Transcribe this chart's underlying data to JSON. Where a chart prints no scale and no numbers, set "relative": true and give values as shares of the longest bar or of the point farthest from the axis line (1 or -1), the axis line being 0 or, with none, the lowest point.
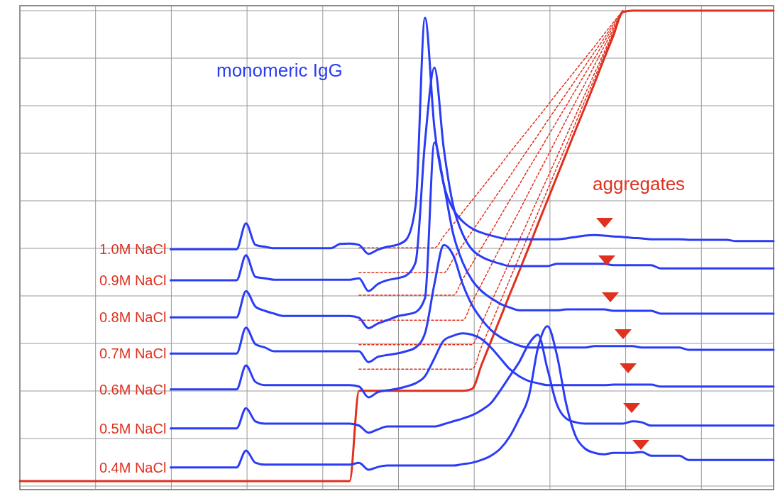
{
  "chart_data": {
    "type": "line",
    "relative": true,
    "grid": true,
    "categories": [
      null,
      null,
      null,
      null,
      null,
      null,
      null,
      null,
      null,
      null,
      null,
      null,
      null,
      null,
      null,
      null,
      null,
      null,
      null,
      null,
      null,
      null,
      null,
      null,
      null,
      null,
      null,
      null,
      null,
      null,
      null,
      null,
      null,
      null,
      null,
      null,
      null,
      null,
      null,
      null,
      null,
      null,
      null,
      null,
      null,
      null,
      null,
      null,
      null,
      null,
      null,
      null,
      null,
      null,
      null,
      null,
      null,
      null,
      null,
      null,
      null,
      null,
      null,
      null,
      null,
      null,
      null,
      null,
      null,
      null,
      null,
      null,
      null,
      null,
      null,
      null,
      null,
      null,
      null,
      null,
      null
    ],
    "annotations": [
      "monomeric IgG",
      "aggregates"
    ],
    "series": [
      {
        "color": "#e0301e",
        "line_style": "dotted",
        "values": [
          null,
          null,
          null,
          null,
          null,
          null,
          null,
          null,
          null,
          null,
          null,
          null,
          null,
          null,
          null,
          null,
          null,
          null,
          null,
          null,
          null,
          null,
          null,
          null,
          null,
          null,
          null,
          null,
          null,
          null,
          null,
          null,
          null,
          null,
          null,
          null,
          0.496,
          0.496,
          0.496,
          0.496,
          0.496,
          0.496,
          0.496,
          0.496,
          0.496,
          0.521,
          0.546,
          0.572,
          0.597,
          0.622,
          0.647,
          0.672,
          0.698,
          0.723,
          0.748,
          0.773,
          0.798,
          0.824,
          0.849,
          0.874,
          0.899,
          0.924,
          0.95,
          0.975,
          1,
          null,
          null,
          null,
          null,
          null,
          null,
          null,
          null,
          null,
          null,
          null,
          null,
          null,
          null,
          null,
          null
        ]
      },
      {
        "color": "#e0301e",
        "line_style": "dotted",
        "values": [
          null,
          null,
          null,
          null,
          null,
          null,
          null,
          null,
          null,
          null,
          null,
          null,
          null,
          null,
          null,
          null,
          null,
          null,
          null,
          null,
          null,
          null,
          null,
          null,
          null,
          null,
          null,
          null,
          null,
          null,
          null,
          null,
          null,
          null,
          null,
          null,
          0.443,
          0.443,
          0.443,
          0.443,
          0.443,
          0.443,
          0.443,
          0.443,
          0.443,
          0.443,
          0.472,
          0.502,
          0.531,
          0.56,
          0.59,
          0.619,
          0.648,
          0.678,
          0.707,
          0.736,
          0.766,
          0.795,
          0.824,
          0.853,
          0.883,
          0.912,
          0.941,
          0.971,
          1,
          null,
          null,
          null,
          null,
          null,
          null,
          null,
          null,
          null,
          null,
          null,
          null,
          null,
          null,
          null,
          null
        ]
      },
      {
        "color": "#e0301e",
        "line_style": "dotted",
        "values": [
          null,
          null,
          null,
          null,
          null,
          null,
          null,
          null,
          null,
          null,
          null,
          null,
          null,
          null,
          null,
          null,
          null,
          null,
          null,
          null,
          null,
          null,
          null,
          null,
          null,
          null,
          null,
          null,
          null,
          null,
          null,
          null,
          null,
          null,
          null,
          null,
          0.395,
          0.395,
          0.395,
          0.395,
          0.395,
          0.395,
          0.395,
          0.395,
          0.395,
          0.395,
          0.395,
          0.429,
          0.462,
          0.496,
          0.529,
          0.563,
          0.597,
          0.63,
          0.664,
          0.697,
          0.731,
          0.765,
          0.798,
          0.832,
          0.866,
          0.899,
          0.933,
          0.966,
          1,
          null,
          null,
          null,
          null,
          null,
          null,
          null,
          null,
          null,
          null,
          null,
          null,
          null,
          null,
          null,
          null
        ]
      },
      {
        "color": "#e0301e",
        "line_style": "dotted",
        "values": [
          null,
          null,
          null,
          null,
          null,
          null,
          null,
          null,
          null,
          null,
          null,
          null,
          null,
          null,
          null,
          null,
          null,
          null,
          null,
          null,
          null,
          null,
          null,
          null,
          null,
          null,
          null,
          null,
          null,
          null,
          null,
          null,
          null,
          null,
          null,
          null,
          0.342,
          0.342,
          0.342,
          0.342,
          0.342,
          0.342,
          0.342,
          0.342,
          0.342,
          0.342,
          0.342,
          0.342,
          0.381,
          0.419,
          0.458,
          0.497,
          0.536,
          0.574,
          0.613,
          0.652,
          0.69,
          0.729,
          0.768,
          0.807,
          0.845,
          0.884,
          0.923,
          0.961,
          1,
          null,
          null,
          null,
          null,
          null,
          null,
          null,
          null,
          null,
          null,
          null,
          null,
          null,
          null,
          null,
          null
        ]
      },
      {
        "color": "#e0301e",
        "line_style": "dotted",
        "values": [
          null,
          null,
          null,
          null,
          null,
          null,
          null,
          null,
          null,
          null,
          null,
          null,
          null,
          null,
          null,
          null,
          null,
          null,
          null,
          null,
          null,
          null,
          null,
          null,
          null,
          null,
          null,
          null,
          null,
          null,
          null,
          null,
          null,
          null,
          null,
          null,
          0.29,
          0.29,
          0.29,
          0.29,
          0.29,
          0.29,
          0.29,
          0.29,
          0.29,
          0.29,
          0.29,
          0.29,
          0.29,
          0.334,
          0.379,
          0.423,
          0.468,
          0.512,
          0.556,
          0.601,
          0.645,
          0.689,
          0.734,
          0.778,
          0.823,
          0.867,
          0.911,
          0.956,
          1,
          null,
          null,
          null,
          null,
          null,
          null,
          null,
          null,
          null,
          null,
          null,
          null,
          null,
          null,
          null,
          null
        ]
      },
      {
        "color": "#e0301e",
        "line_style": "dotted",
        "values": [
          null,
          null,
          null,
          null,
          null,
          null,
          null,
          null,
          null,
          null,
          null,
          null,
          null,
          null,
          null,
          null,
          null,
          null,
          null,
          null,
          null,
          null,
          null,
          null,
          null,
          null,
          null,
          null,
          null,
          null,
          null,
          null,
          null,
          null,
          null,
          null,
          0.238,
          0.238,
          0.238,
          0.238,
          0.238,
          0.238,
          0.238,
          0.238,
          0.238,
          0.238,
          0.238,
          0.238,
          0.238,
          0.286,
          0.333,
          0.381,
          0.429,
          0.476,
          0.524,
          0.571,
          0.619,
          0.667,
          0.714,
          0.762,
          0.81,
          0.857,
          0.905,
          0.952,
          1,
          null,
          null,
          null,
          null,
          null,
          null,
          null,
          null,
          null,
          null,
          null,
          null,
          null,
          null,
          null,
          null
        ]
      },
      {
        "color": "#e0301e",
        "values": [
          0,
          0,
          0,
          0,
          0,
          0,
          0,
          0,
          0,
          0,
          0,
          0,
          0,
          0,
          0,
          0,
          0,
          0,
          0,
          0,
          0,
          0,
          0,
          0,
          0,
          0,
          0,
          0,
          0,
          0,
          0,
          0,
          0,
          0,
          0,
          0,
          0.192,
          0.192,
          0.192,
          0.192,
          0.192,
          0.192,
          0.192,
          0.192,
          0.192,
          0.192,
          0.192,
          0.192,
          0.196,
          0.247,
          0.297,
          0.347,
          0.397,
          0.446,
          0.496,
          0.547,
          0.597,
          0.647,
          0.697,
          0.747,
          0.796,
          0.846,
          0.897,
          0.947,
          0.997,
          1,
          1,
          1,
          1,
          1,
          1,
          1,
          1,
          1,
          1,
          1,
          1,
          1,
          1,
          1,
          1
        ]
      },
      {
        "name": "1.0M NaCl",
        "color": "#2a3cf5",
        "values": [
          null,
          null,
          null,
          null,
          null,
          null,
          null,
          null,
          null,
          null,
          null,
          null,
          null,
          null,
          null,
          null,
          0.493,
          0.493,
          0.493,
          0.493,
          0.493,
          0.493,
          0.493,
          0.493,
          0.548,
          0.502,
          0.498,
          0.495,
          0.495,
          0.495,
          0.495,
          0.495,
          0.495,
          0.495,
          0.504,
          0.505,
          0.502,
          0.483,
          0.492,
          0.498,
          0.502,
          0.513,
          0.585,
          0.985,
          0.751,
          0.63,
          0.578,
          0.552,
          0.537,
          0.528,
          0.522,
          0.517,
          0.514,
          0.514,
          0.514,
          0.514,
          0.514,
          0.514,
          0.516,
          0.519,
          0.522,
          0.523,
          0.522,
          0.52,
          0.519,
          0.517,
          0.516,
          0.514,
          0.514,
          0.514,
          0.514,
          0.513,
          0.513,
          0.513,
          0.513,
          0.513,
          0.51,
          0.51,
          0.51,
          0.51,
          0.51
        ]
      },
      {
        "name": "0.9M NaCl",
        "color": "#2a3cf5",
        "values": [
          null,
          null,
          null,
          null,
          null,
          null,
          null,
          null,
          null,
          null,
          null,
          null,
          null,
          null,
          null,
          null,
          0.427,
          0.427,
          0.427,
          0.427,
          0.427,
          0.427,
          0.427,
          0.427,
          0.48,
          0.434,
          0.431,
          0.428,
          0.428,
          0.428,
          0.428,
          0.428,
          0.428,
          0.428,
          0.428,
          0.428,
          0.431,
          0.404,
          0.419,
          0.427,
          0.431,
          0.437,
          0.465,
          0.721,
          0.879,
          0.706,
          0.585,
          0.525,
          0.492,
          0.477,
          0.468,
          0.462,
          0.457,
          0.457,
          0.457,
          0.457,
          0.457,
          0.462,
          0.462,
          0.462,
          0.462,
          0.462,
          0.462,
          0.459,
          0.459,
          0.459,
          0.459,
          0.459,
          0.452,
          0.452,
          0.452,
          0.452,
          0.452,
          0.452,
          0.452,
          0.452,
          0.452,
          0.452,
          0.452,
          0.452,
          0.452
        ]
      },
      {
        "name": "0.8M NaCl",
        "color": "#2a3cf5",
        "values": [
          null,
          null,
          null,
          null,
          null,
          null,
          null,
          null,
          null,
          null,
          null,
          null,
          null,
          null,
          null,
          null,
          0.348,
          0.348,
          0.348,
          0.348,
          0.348,
          0.348,
          0.348,
          0.348,
          0.404,
          0.371,
          0.362,
          0.356,
          0.351,
          0.351,
          0.351,
          0.351,
          0.351,
          0.351,
          0.351,
          0.351,
          0.347,
          0.325,
          0.335,
          0.342,
          0.35,
          0.354,
          0.359,
          0.389,
          0.72,
          0.63,
          0.525,
          0.465,
          0.427,
          0.404,
          0.389,
          0.377,
          0.369,
          0.363,
          0.363,
          0.363,
          0.363,
          0.363,
          0.365,
          0.365,
          0.365,
          0.365,
          0.365,
          0.362,
          0.362,
          0.362,
          0.362,
          0.362,
          0.356,
          0.356,
          0.356,
          0.356,
          0.356,
          0.356,
          0.356,
          0.356,
          0.356,
          0.356,
          0.356,
          0.356,
          0.356
        ]
      },
      {
        "name": "0.7M NaCl",
        "color": "#2a3cf5",
        "values": [
          null,
          null,
          null,
          null,
          null,
          null,
          null,
          null,
          null,
          null,
          null,
          null,
          null,
          null,
          null,
          null,
          0.271,
          0.271,
          0.271,
          0.271,
          0.271,
          0.271,
          0.271,
          0.271,
          0.326,
          0.291,
          0.284,
          0.276,
          0.276,
          0.276,
          0.276,
          0.276,
          0.276,
          0.276,
          0.276,
          0.276,
          0.276,
          0.253,
          0.264,
          0.268,
          0.271,
          0.276,
          0.284,
          0.314,
          0.419,
          0.502,
          0.48,
          0.419,
          0.374,
          0.344,
          0.321,
          0.306,
          0.296,
          0.288,
          0.284,
          0.284,
          0.284,
          0.284,
          0.284,
          0.284,
          0.284,
          0.287,
          0.287,
          0.287,
          0.287,
          0.287,
          0.284,
          0.284,
          0.284,
          0.284,
          0.284,
          0.279,
          0.279,
          0.279,
          0.279,
          0.279,
          0.279,
          0.279,
          0.279,
          0.279,
          0.279
        ]
      },
      {
        "name": "0.6M NaCl",
        "color": "#2a3cf5",
        "values": [
          null,
          null,
          null,
          null,
          null,
          null,
          null,
          null,
          null,
          null,
          null,
          null,
          null,
          null,
          null,
          null,
          0.195,
          0.195,
          0.195,
          0.195,
          0.195,
          0.195,
          0.195,
          0.195,
          0.246,
          0.211,
          0.204,
          0.204,
          0.204,
          0.204,
          0.204,
          0.204,
          0.204,
          0.204,
          0.204,
          0.204,
          0.201,
          0.178,
          0.189,
          0.193,
          0.196,
          0.201,
          0.208,
          0.223,
          0.261,
          0.299,
          0.309,
          0.314,
          0.311,
          0.302,
          0.284,
          0.261,
          0.238,
          0.223,
          0.213,
          0.208,
          0.204,
          0.204,
          0.204,
          0.204,
          0.204,
          0.204,
          0.204,
          0.205,
          0.205,
          0.205,
          0.205,
          0.205,
          0.201,
          0.201,
          0.201,
          0.201,
          0.201,
          0.201,
          0.201,
          0.201,
          0.201,
          0.201,
          0.201,
          0.201,
          0.201
        ]
      },
      {
        "name": "0.5M NaCl",
        "color": "#2a3cf5",
        "values": [
          null,
          null,
          null,
          null,
          null,
          null,
          null,
          null,
          null,
          null,
          null,
          null,
          null,
          null,
          null,
          null,
          0.112,
          0.112,
          0.112,
          0.112,
          0.112,
          0.112,
          0.112,
          0.112,
          0.155,
          0.127,
          0.122,
          0.122,
          0.122,
          0.122,
          0.122,
          0.122,
          0.122,
          0.122,
          0.122,
          0.122,
          0.118,
          0.103,
          0.11,
          0.116,
          0.116,
          0.116,
          0.116,
          0.116,
          0.116,
          0.121,
          0.127,
          0.133,
          0.14,
          0.151,
          0.166,
          0.193,
          0.223,
          0.253,
          0.291,
          0.311,
          0.238,
          0.163,
          0.133,
          0.125,
          0.122,
          0.122,
          0.122,
          0.122,
          0.122,
          0.127,
          0.125,
          0.118,
          0.118,
          0.118,
          0.118,
          0.118,
          0.118,
          0.118,
          0.118,
          0.118,
          0.118,
          0.118,
          0.118,
          0.118,
          0.118
        ]
      },
      {
        "name": "0.4M NaCl",
        "color": "#2a3cf5",
        "values": [
          null,
          null,
          null,
          null,
          null,
          null,
          null,
          null,
          null,
          null,
          null,
          null,
          null,
          null,
          null,
          null,
          0.029,
          0.029,
          0.029,
          0.029,
          0.029,
          0.029,
          0.029,
          0.029,
          0.065,
          0.039,
          0.035,
          0.035,
          0.035,
          0.035,
          0.035,
          0.035,
          0.035,
          0.035,
          0.035,
          0.035,
          0.039,
          0.024,
          0.03,
          0.033,
          0.033,
          0.033,
          0.033,
          0.033,
          0.033,
          0.033,
          0.033,
          0.036,
          0.039,
          0.045,
          0.054,
          0.069,
          0.095,
          0.133,
          0.178,
          0.284,
          0.329,
          0.268,
          0.163,
          0.095,
          0.069,
          0.06,
          0.057,
          0.06,
          0.06,
          0.06,
          0.062,
          0.054,
          0.054,
          0.054,
          0.054,
          0.045,
          0.045,
          0.045,
          0.045,
          0.045,
          0.045,
          0.045,
          0.045,
          0.045,
          0.045
        ]
      }
    ]
  }
}
